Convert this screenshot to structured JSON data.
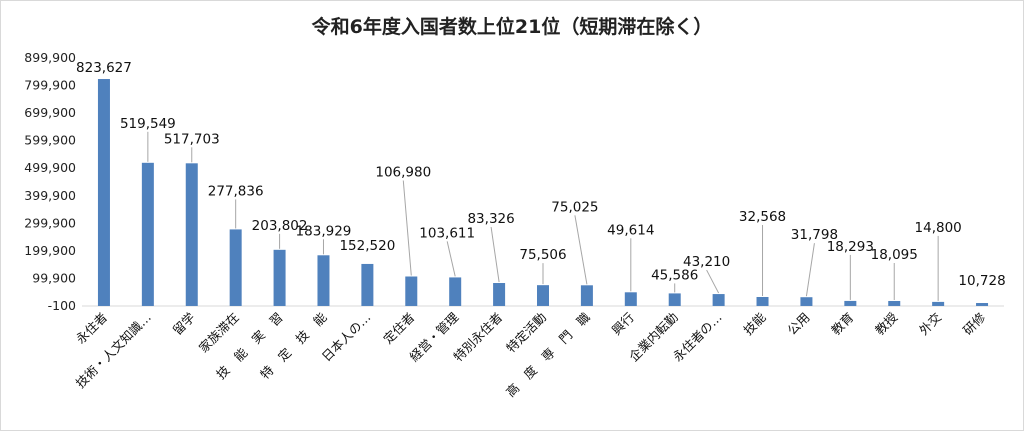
{
  "chart_data": {
    "type": "bar",
    "title": "令和6年度入国者数上位21位（短期滞在除く）",
    "xlabel": "",
    "ylabel": "",
    "ylim": [
      -100,
      899900
    ],
    "yticks": [
      "-100",
      "99,900",
      "199,900",
      "299,900",
      "399,900",
      "499,900",
      "599,900",
      "699,900",
      "799,900",
      "899,900"
    ],
    "ytick_values": [
      -100,
      99900,
      199900,
      299900,
      399900,
      499900,
      599900,
      699900,
      799900,
      899900
    ],
    "grid": false,
    "bar_color": "#4f81bd",
    "categories": [
      "永住者",
      "技術・人文知識…",
      "留学",
      "家族滞在",
      "技　能　実　習",
      "特　定　技　能",
      "日本人の…",
      "定住者",
      "経営・管理",
      "特別永住者",
      "特定活動",
      "高　度　専　門　職",
      "興行",
      "企業内転勤",
      "永住者の…",
      "技能",
      "公用",
      "教育",
      "教授",
      "外交",
      "研修"
    ],
    "values": [
      823627,
      519549,
      517703,
      277836,
      203802,
      183929,
      152520,
      106980,
      103611,
      83326,
      75506,
      75025,
      49614,
      45586,
      43210,
      32568,
      31798,
      18293,
      18095,
      14800,
      10728
    ],
    "data_labels": [
      "823,627",
      "519,549",
      "517,703",
      "277,836",
      "203,802",
      "183,929",
      "152,520",
      "106,980",
      "103,611",
      "83,326",
      "75,506",
      "75,025",
      "49,614",
      "45,586",
      "43,210",
      "32,568",
      "31,798",
      "18,293",
      "18,095",
      "14,800",
      "10,728"
    ]
  }
}
